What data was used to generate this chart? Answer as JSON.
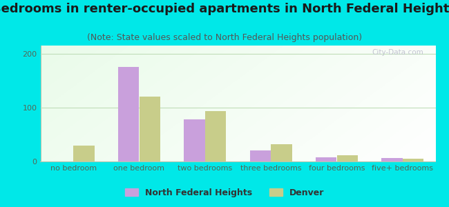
{
  "title": "Bedrooms in renter-occupied apartments in North Federal Heights",
  "subtitle": "(Note: State values scaled to North Federal Heights population)",
  "categories": [
    "no bedroom",
    "one bedroom",
    "two bedrooms",
    "three bedrooms",
    "four bedrooms",
    "five+ bedrooms"
  ],
  "nfh_values": [
    0,
    175,
    78,
    20,
    8,
    6
  ],
  "denver_values": [
    30,
    120,
    93,
    32,
    12,
    5
  ],
  "nfh_color": "#c9a0dc",
  "denver_color": "#c8cd8a",
  "bg_outer": "#00e8e8",
  "ylim": [
    0,
    215
  ],
  "yticks": [
    0,
    100,
    200
  ],
  "bar_width": 0.32,
  "title_fontsize": 13,
  "subtitle_fontsize": 9,
  "tick_fontsize": 8,
  "legend_fontsize": 9,
  "watermark_text": "City-Data.com",
  "grid_color": "#c0ddb8",
  "axis_line_color": "#b0c8b0",
  "tick_color": "#556655"
}
